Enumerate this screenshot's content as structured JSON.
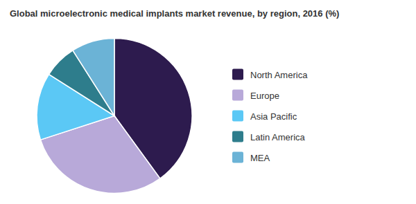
{
  "chart_data": {
    "type": "pie",
    "title": "Global microelectronic medical implants market revenue, by region, 2016 (%)",
    "categories": [
      "North America",
      "Europe",
      "Asia Pacific",
      "Latin America",
      "MEA"
    ],
    "values": [
      40,
      30,
      14,
      7,
      9
    ],
    "colors": [
      "#2d1b4e",
      "#b8a9d9",
      "#5bc8f5",
      "#2e7d8c",
      "#6bb3d6"
    ],
    "legend": "right"
  }
}
